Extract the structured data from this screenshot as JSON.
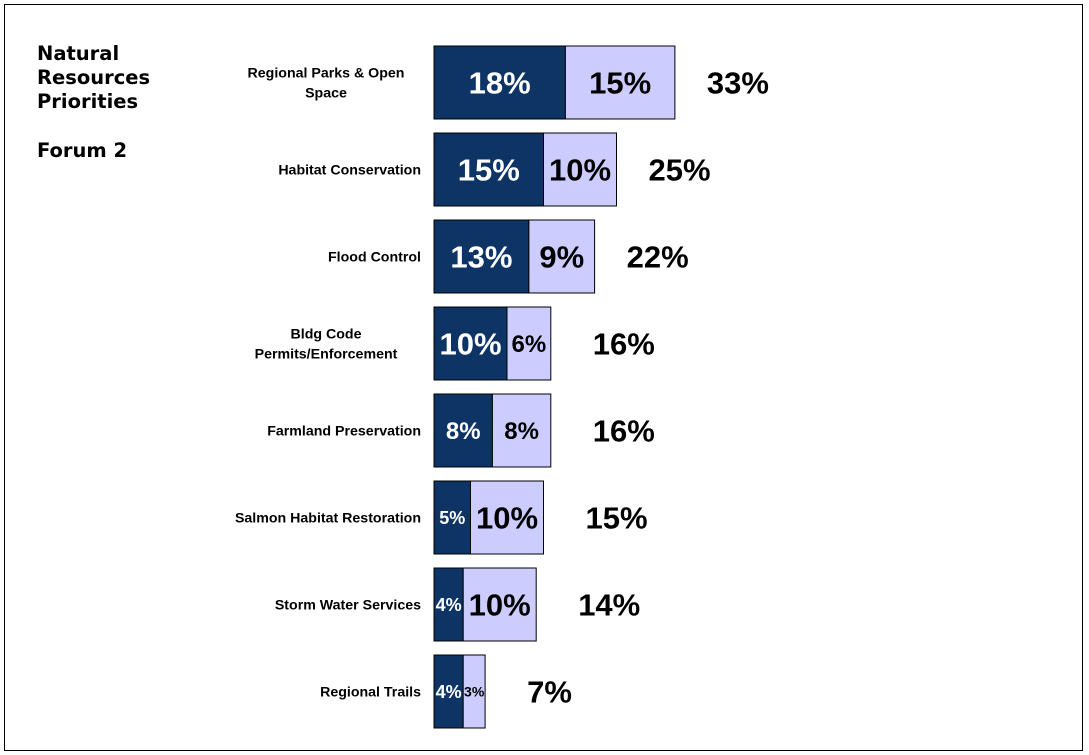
{
  "side_title": {
    "lines": [
      "Natural",
      "Resources",
      "Priorities"
    ],
    "forum": "Forum 2"
  },
  "colors": {
    "dark": "#0d3465",
    "light": "#ccccff",
    "text_on_dark": "#ffffff",
    "text_on_light": "#000000"
  },
  "chart_data": {
    "type": "bar",
    "orientation": "horizontal",
    "stacked": true,
    "title": "",
    "xlabel": "",
    "ylabel": "",
    "categories": [
      [
        "Regional Parks & Open",
        "Space"
      ],
      [
        "Habitat Conservation"
      ],
      [
        "Flood Control"
      ],
      [
        "Bldg Code",
        "Permits/Enforcement"
      ],
      [
        "Farmland Preservation"
      ],
      [
        "Salmon Habitat Restoration"
      ],
      [
        "Storm Water Services"
      ],
      [
        "Regional Trails"
      ]
    ],
    "series": [
      {
        "color": "#0d3465",
        "values": [
          18,
          15,
          13,
          10,
          8,
          5,
          4,
          4
        ],
        "labels": [
          "18%",
          "15%",
          "13%",
          "10%",
          "8%",
          "5%",
          "4%",
          "4%"
        ]
      },
      {
        "color": "#ccccff",
        "values": [
          15,
          10,
          9,
          6,
          8,
          10,
          10,
          3
        ],
        "labels": [
          "15%",
          "10%",
          "9%",
          "6%",
          "8%",
          "10%",
          "10%",
          "3%"
        ]
      }
    ],
    "totals": [
      "33%",
      "25%",
      "22%",
      "16%",
      "16%",
      "15%",
      "14%",
      "7%"
    ],
    "grid": false,
    "legend": "none"
  }
}
